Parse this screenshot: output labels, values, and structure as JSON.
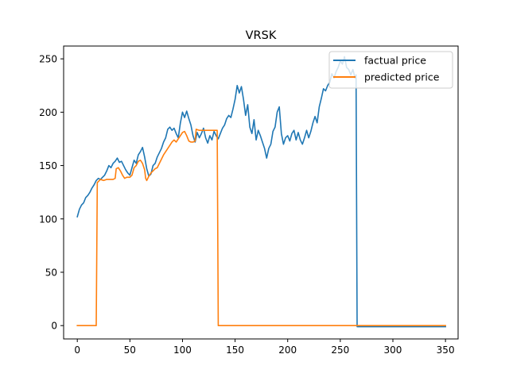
{
  "chart_data": {
    "type": "line",
    "title": "VRSK",
    "xlabel": "",
    "ylabel": "",
    "xlim": [
      -13,
      362
    ],
    "ylim": [
      -12.5,
      262
    ],
    "xticks": [
      0,
      50,
      100,
      150,
      200,
      250,
      300,
      350
    ],
    "yticks": [
      0,
      50,
      100,
      150,
      200,
      250
    ],
    "legend": {
      "position": "top-right"
    },
    "grid": false,
    "series": [
      {
        "name": "factual price",
        "color": "#1f77b4",
        "points": [
          [
            0,
            102
          ],
          [
            2,
            109
          ],
          [
            4,
            113
          ],
          [
            6,
            115
          ],
          [
            8,
            120
          ],
          [
            10,
            122
          ],
          [
            12,
            125
          ],
          [
            14,
            129
          ],
          [
            16,
            132
          ],
          [
            18,
            136
          ],
          [
            20,
            138
          ],
          [
            22,
            137
          ],
          [
            24,
            139
          ],
          [
            26,
            141
          ],
          [
            28,
            145
          ],
          [
            30,
            150
          ],
          [
            32,
            148
          ],
          [
            34,
            152
          ],
          [
            36,
            154
          ],
          [
            38,
            157
          ],
          [
            40,
            153
          ],
          [
            42,
            154
          ],
          [
            44,
            150
          ],
          [
            46,
            146
          ],
          [
            48,
            143
          ],
          [
            50,
            141
          ],
          [
            52,
            148
          ],
          [
            54,
            155
          ],
          [
            56,
            152
          ],
          [
            58,
            160
          ],
          [
            60,
            163
          ],
          [
            62,
            167
          ],
          [
            64,
            158
          ],
          [
            66,
            147
          ],
          [
            68,
            140
          ],
          [
            70,
            142
          ],
          [
            72,
            150
          ],
          [
            74,
            152
          ],
          [
            76,
            158
          ],
          [
            78,
            162
          ],
          [
            80,
            166
          ],
          [
            82,
            172
          ],
          [
            84,
            176
          ],
          [
            86,
            184
          ],
          [
            88,
            186
          ],
          [
            90,
            183
          ],
          [
            92,
            185
          ],
          [
            94,
            180
          ],
          [
            96,
            176
          ],
          [
            98,
            190
          ],
          [
            100,
            200
          ],
          [
            102,
            195
          ],
          [
            104,
            201
          ],
          [
            106,
            194
          ],
          [
            108,
            188
          ],
          [
            110,
            178
          ],
          [
            112,
            172
          ],
          [
            114,
            181
          ],
          [
            116,
            176
          ],
          [
            118,
            180
          ],
          [
            120,
            185
          ],
          [
            122,
            176
          ],
          [
            124,
            171
          ],
          [
            126,
            178
          ],
          [
            128,
            174
          ],
          [
            130,
            182
          ],
          [
            132,
            178
          ],
          [
            134,
            175
          ],
          [
            136,
            180
          ],
          [
            138,
            185
          ],
          [
            140,
            188
          ],
          [
            142,
            194
          ],
          [
            144,
            197
          ],
          [
            146,
            195
          ],
          [
            148,
            203
          ],
          [
            150,
            212
          ],
          [
            152,
            225
          ],
          [
            154,
            218
          ],
          [
            156,
            224
          ],
          [
            158,
            212
          ],
          [
            160,
            197
          ],
          [
            162,
            207
          ],
          [
            164,
            186
          ],
          [
            166,
            180
          ],
          [
            168,
            193
          ],
          [
            170,
            174
          ],
          [
            172,
            183
          ],
          [
            174,
            178
          ],
          [
            176,
            172
          ],
          [
            178,
            166
          ],
          [
            180,
            157
          ],
          [
            182,
            166
          ],
          [
            184,
            170
          ],
          [
            186,
            182
          ],
          [
            188,
            186
          ],
          [
            190,
            200
          ],
          [
            192,
            205
          ],
          [
            194,
            180
          ],
          [
            196,
            170
          ],
          [
            198,
            176
          ],
          [
            200,
            178
          ],
          [
            202,
            173
          ],
          [
            204,
            180
          ],
          [
            206,
            183
          ],
          [
            208,
            174
          ],
          [
            210,
            181
          ],
          [
            212,
            174
          ],
          [
            214,
            170
          ],
          [
            216,
            176
          ],
          [
            218,
            183
          ],
          [
            220,
            176
          ],
          [
            222,
            182
          ],
          [
            224,
            190
          ],
          [
            226,
            196
          ],
          [
            228,
            190
          ],
          [
            230,
            205
          ],
          [
            232,
            213
          ],
          [
            234,
            222
          ],
          [
            236,
            220
          ],
          [
            238,
            225
          ],
          [
            240,
            228
          ],
          [
            242,
            236
          ],
          [
            244,
            232
          ],
          [
            246,
            238
          ],
          [
            248,
            242
          ],
          [
            250,
            248
          ],
          [
            252,
            245
          ],
          [
            254,
            252
          ],
          [
            256,
            242
          ],
          [
            258,
            240
          ],
          [
            260,
            235
          ],
          [
            262,
            240
          ],
          [
            264,
            232
          ],
          [
            265,
            235
          ],
          [
            266,
            -1
          ],
          [
            300,
            -1
          ],
          [
            350,
            -1
          ]
        ]
      },
      {
        "name": "predicted price",
        "color": "#ff7f0e",
        "points": [
          [
            0,
            0
          ],
          [
            18,
            0
          ],
          [
            19,
            134
          ],
          [
            22,
            137
          ],
          [
            25,
            136
          ],
          [
            28,
            137
          ],
          [
            31,
            137
          ],
          [
            34,
            137
          ],
          [
            36,
            138
          ],
          [
            37,
            147
          ],
          [
            39,
            148
          ],
          [
            41,
            145
          ],
          [
            43,
            141
          ],
          [
            45,
            138
          ],
          [
            47,
            139
          ],
          [
            50,
            139
          ],
          [
            52,
            141
          ],
          [
            54,
            148
          ],
          [
            56,
            150
          ],
          [
            58,
            154
          ],
          [
            60,
            155
          ],
          [
            62,
            152
          ],
          [
            64,
            146
          ],
          [
            65,
            138
          ],
          [
            66,
            136
          ],
          [
            68,
            140
          ],
          [
            70,
            143
          ],
          [
            72,
            145
          ],
          [
            74,
            147
          ],
          [
            76,
            148
          ],
          [
            78,
            152
          ],
          [
            80,
            156
          ],
          [
            82,
            160
          ],
          [
            84,
            163
          ],
          [
            86,
            166
          ],
          [
            88,
            169
          ],
          [
            90,
            172
          ],
          [
            92,
            174
          ],
          [
            94,
            172
          ],
          [
            96,
            175
          ],
          [
            98,
            178
          ],
          [
            100,
            181
          ],
          [
            102,
            182
          ],
          [
            104,
            178
          ],
          [
            106,
            173
          ],
          [
            108,
            172
          ],
          [
            110,
            172
          ],
          [
            112,
            173
          ],
          [
            113,
            184
          ],
          [
            116,
            183
          ],
          [
            120,
            183
          ],
          [
            124,
            183
          ],
          [
            128,
            183
          ],
          [
            132,
            183
          ],
          [
            133,
            183
          ],
          [
            134,
            0
          ],
          [
            200,
            0
          ],
          [
            250,
            0
          ],
          [
            300,
            0
          ],
          [
            350,
            0
          ]
        ]
      }
    ]
  }
}
